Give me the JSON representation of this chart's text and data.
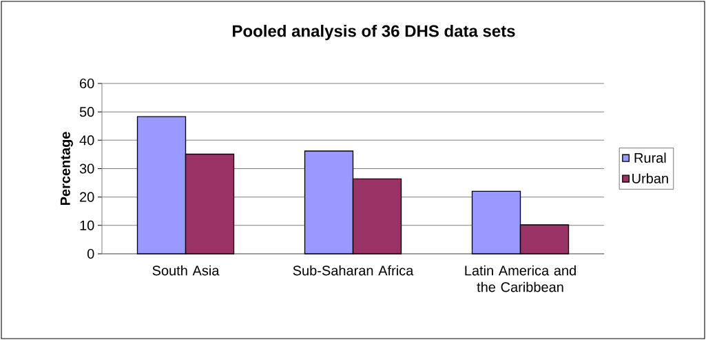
{
  "chart_data": {
    "type": "bar",
    "title": "Pooled analysis of 36 DHS data sets",
    "ylabel": "Percentage",
    "categories": [
      "South Asia",
      "Sub-Saharan Africa",
      "Latin America and the Caribbean"
    ],
    "series": [
      {
        "name": "Rural",
        "color": "#9999ff",
        "values": [
          48.3,
          36.2,
          22.0
        ]
      },
      {
        "name": "Urban",
        "color": "#993366",
        "values": [
          35.1,
          26.4,
          10.2
        ]
      }
    ],
    "ylim": [
      0,
      60
    ],
    "yticks": [
      0,
      10,
      20,
      30,
      40,
      50,
      60
    ],
    "grid": "y",
    "legend": "right"
  }
}
